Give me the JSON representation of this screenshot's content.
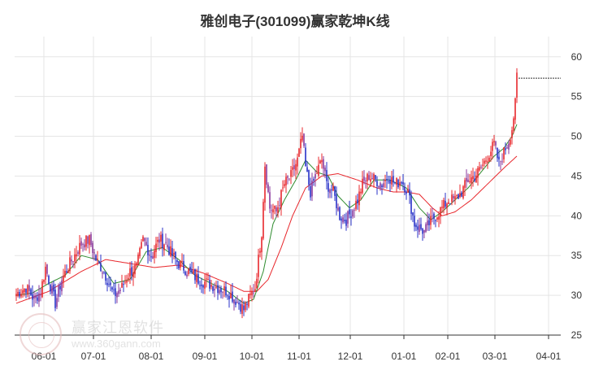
{
  "chart_data": {
    "type": "candlestick",
    "title": "雅创电子(301099)赢家乾坤K线",
    "xlabel": "",
    "ylabel": "",
    "ylim": [
      25,
      61
    ],
    "yticks": [
      25,
      30,
      35,
      40,
      45,
      50,
      55,
      60
    ],
    "grid": true,
    "x_tick_labels": [
      "06-01",
      "07-01",
      "08-01",
      "09-01",
      "10-01",
      "11-01",
      "12-01",
      "01-01",
      "02-01",
      "03-01",
      "04-01"
    ],
    "price_anchors": [
      [
        0,
        30.2
      ],
      [
        6,
        31.0
      ],
      [
        11,
        29.5
      ],
      [
        15,
        30.5
      ],
      [
        18,
        33.5
      ],
      [
        21,
        31.2
      ],
      [
        24,
        29.0
      ],
      [
        28,
        32.0
      ],
      [
        33,
        34.0
      ],
      [
        40,
        36.5
      ],
      [
        45,
        37.0
      ],
      [
        49,
        34.5
      ],
      [
        54,
        33.0
      ],
      [
        60,
        30.0
      ],
      [
        65,
        31.0
      ],
      [
        70,
        33.0
      ],
      [
        74,
        33.5
      ],
      [
        78,
        37.0
      ],
      [
        83,
        35.0
      ],
      [
        88,
        37.0
      ],
      [
        92,
        36.5
      ],
      [
        96,
        35.0
      ],
      [
        100,
        34.0
      ],
      [
        106,
        33.0
      ],
      [
        112,
        32.0
      ],
      [
        118,
        31.5
      ],
      [
        124,
        31.0
      ],
      [
        130,
        30.5
      ],
      [
        137,
        29.0
      ],
      [
        140,
        28.2
      ],
      [
        143,
        29.5
      ],
      [
        147,
        31.0
      ],
      [
        151,
        38.0
      ],
      [
        153,
        46.5
      ],
      [
        156,
        41.0
      ],
      [
        160,
        40.5
      ],
      [
        165,
        44.0
      ],
      [
        169,
        45.0
      ],
      [
        173,
        47.0
      ],
      [
        176,
        50.0
      ],
      [
        178,
        46.0
      ],
      [
        181,
        43.0
      ],
      [
        184,
        45.0
      ],
      [
        188,
        47.0
      ],
      [
        191,
        44.0
      ],
      [
        195,
        43.0
      ],
      [
        199,
        40.0
      ],
      [
        203,
        39.5
      ],
      [
        206,
        40.5
      ],
      [
        210,
        42.0
      ],
      [
        213,
        44.0
      ],
      [
        217,
        45.0
      ],
      [
        221,
        44.5
      ],
      [
        225,
        44.0
      ],
      [
        229,
        45.0
      ],
      [
        233,
        44.0
      ],
      [
        237,
        44.5
      ],
      [
        241,
        43.0
      ],
      [
        245,
        39.0
      ],
      [
        248,
        38.5
      ],
      [
        251,
        38.0
      ],
      [
        254,
        39.0
      ],
      [
        258,
        40.0
      ],
      [
        262,
        41.0
      ],
      [
        266,
        42.0
      ],
      [
        270,
        42.0
      ],
      [
        274,
        43.0
      ],
      [
        278,
        44.5
      ],
      [
        282,
        45.0
      ],
      [
        286,
        46.0
      ],
      [
        290,
        47.5
      ],
      [
        294,
        49.0
      ],
      [
        297,
        46.5
      ],
      [
        300,
        48.0
      ],
      [
        303,
        49.5
      ],
      [
        305,
        51.0
      ],
      [
        307,
        54.0
      ],
      [
        308,
        57.5
      ]
    ],
    "ma_short_anchors": [
      [
        0,
        30.0
      ],
      [
        10,
        30.3
      ],
      [
        20,
        31.5
      ],
      [
        30,
        32.5
      ],
      [
        40,
        35.0
      ],
      [
        50,
        34.5
      ],
      [
        60,
        31.5
      ],
      [
        70,
        32.0
      ],
      [
        80,
        35.5
      ],
      [
        90,
        36.0
      ],
      [
        100,
        34.5
      ],
      [
        110,
        32.5
      ],
      [
        120,
        31.5
      ],
      [
        130,
        30.5
      ],
      [
        140,
        29.0
      ],
      [
        146,
        29.5
      ],
      [
        152,
        33.0
      ],
      [
        158,
        39.0
      ],
      [
        165,
        42.0
      ],
      [
        172,
        44.5
      ],
      [
        178,
        47.0
      ],
      [
        185,
        45.5
      ],
      [
        192,
        45.0
      ],
      [
        198,
        42.5
      ],
      [
        205,
        41.0
      ],
      [
        212,
        42.0
      ],
      [
        220,
        44.5
      ],
      [
        230,
        44.5
      ],
      [
        240,
        43.5
      ],
      [
        248,
        41.0
      ],
      [
        255,
        39.5
      ],
      [
        262,
        40.5
      ],
      [
        270,
        42.0
      ],
      [
        278,
        43.5
      ],
      [
        286,
        45.5
      ],
      [
        294,
        47.5
      ],
      [
        300,
        48.5
      ],
      [
        305,
        50.0
      ],
      [
        308,
        51.5
      ]
    ],
    "ma_long_anchors": [
      [
        0,
        29.0
      ],
      [
        20,
        30.5
      ],
      [
        40,
        33.0
      ],
      [
        55,
        34.5
      ],
      [
        70,
        34.0
      ],
      [
        85,
        33.5
      ],
      [
        100,
        33.8
      ],
      [
        115,
        32.8
      ],
      [
        130,
        31.5
      ],
      [
        140,
        30.5
      ],
      [
        148,
        30.5
      ],
      [
        155,
        32.0
      ],
      [
        163,
        36.0
      ],
      [
        170,
        40.0
      ],
      [
        178,
        43.5
      ],
      [
        188,
        45.0
      ],
      [
        198,
        45.3
      ],
      [
        210,
        44.5
      ],
      [
        222,
        43.5
      ],
      [
        232,
        43.0
      ],
      [
        240,
        43.0
      ],
      [
        248,
        42.7
      ],
      [
        256,
        41.0
      ],
      [
        262,
        40.0
      ],
      [
        270,
        40.5
      ],
      [
        280,
        42.0
      ],
      [
        290,
        44.0
      ],
      [
        300,
        46.0
      ],
      [
        308,
        47.5
      ]
    ],
    "dashed_reference_price": 57.3,
    "colors": {
      "up": "#e8272c",
      "down": "#2832c8",
      "neutral": "#8b3a9c",
      "ma_short": "#2e8b2e",
      "ma_long": "#e8272c",
      "grid": "#e5e5e5",
      "axis": "#333333"
    }
  },
  "watermark": {
    "name": "赢家江恩软件",
    "url": "www.360gann.com"
  }
}
